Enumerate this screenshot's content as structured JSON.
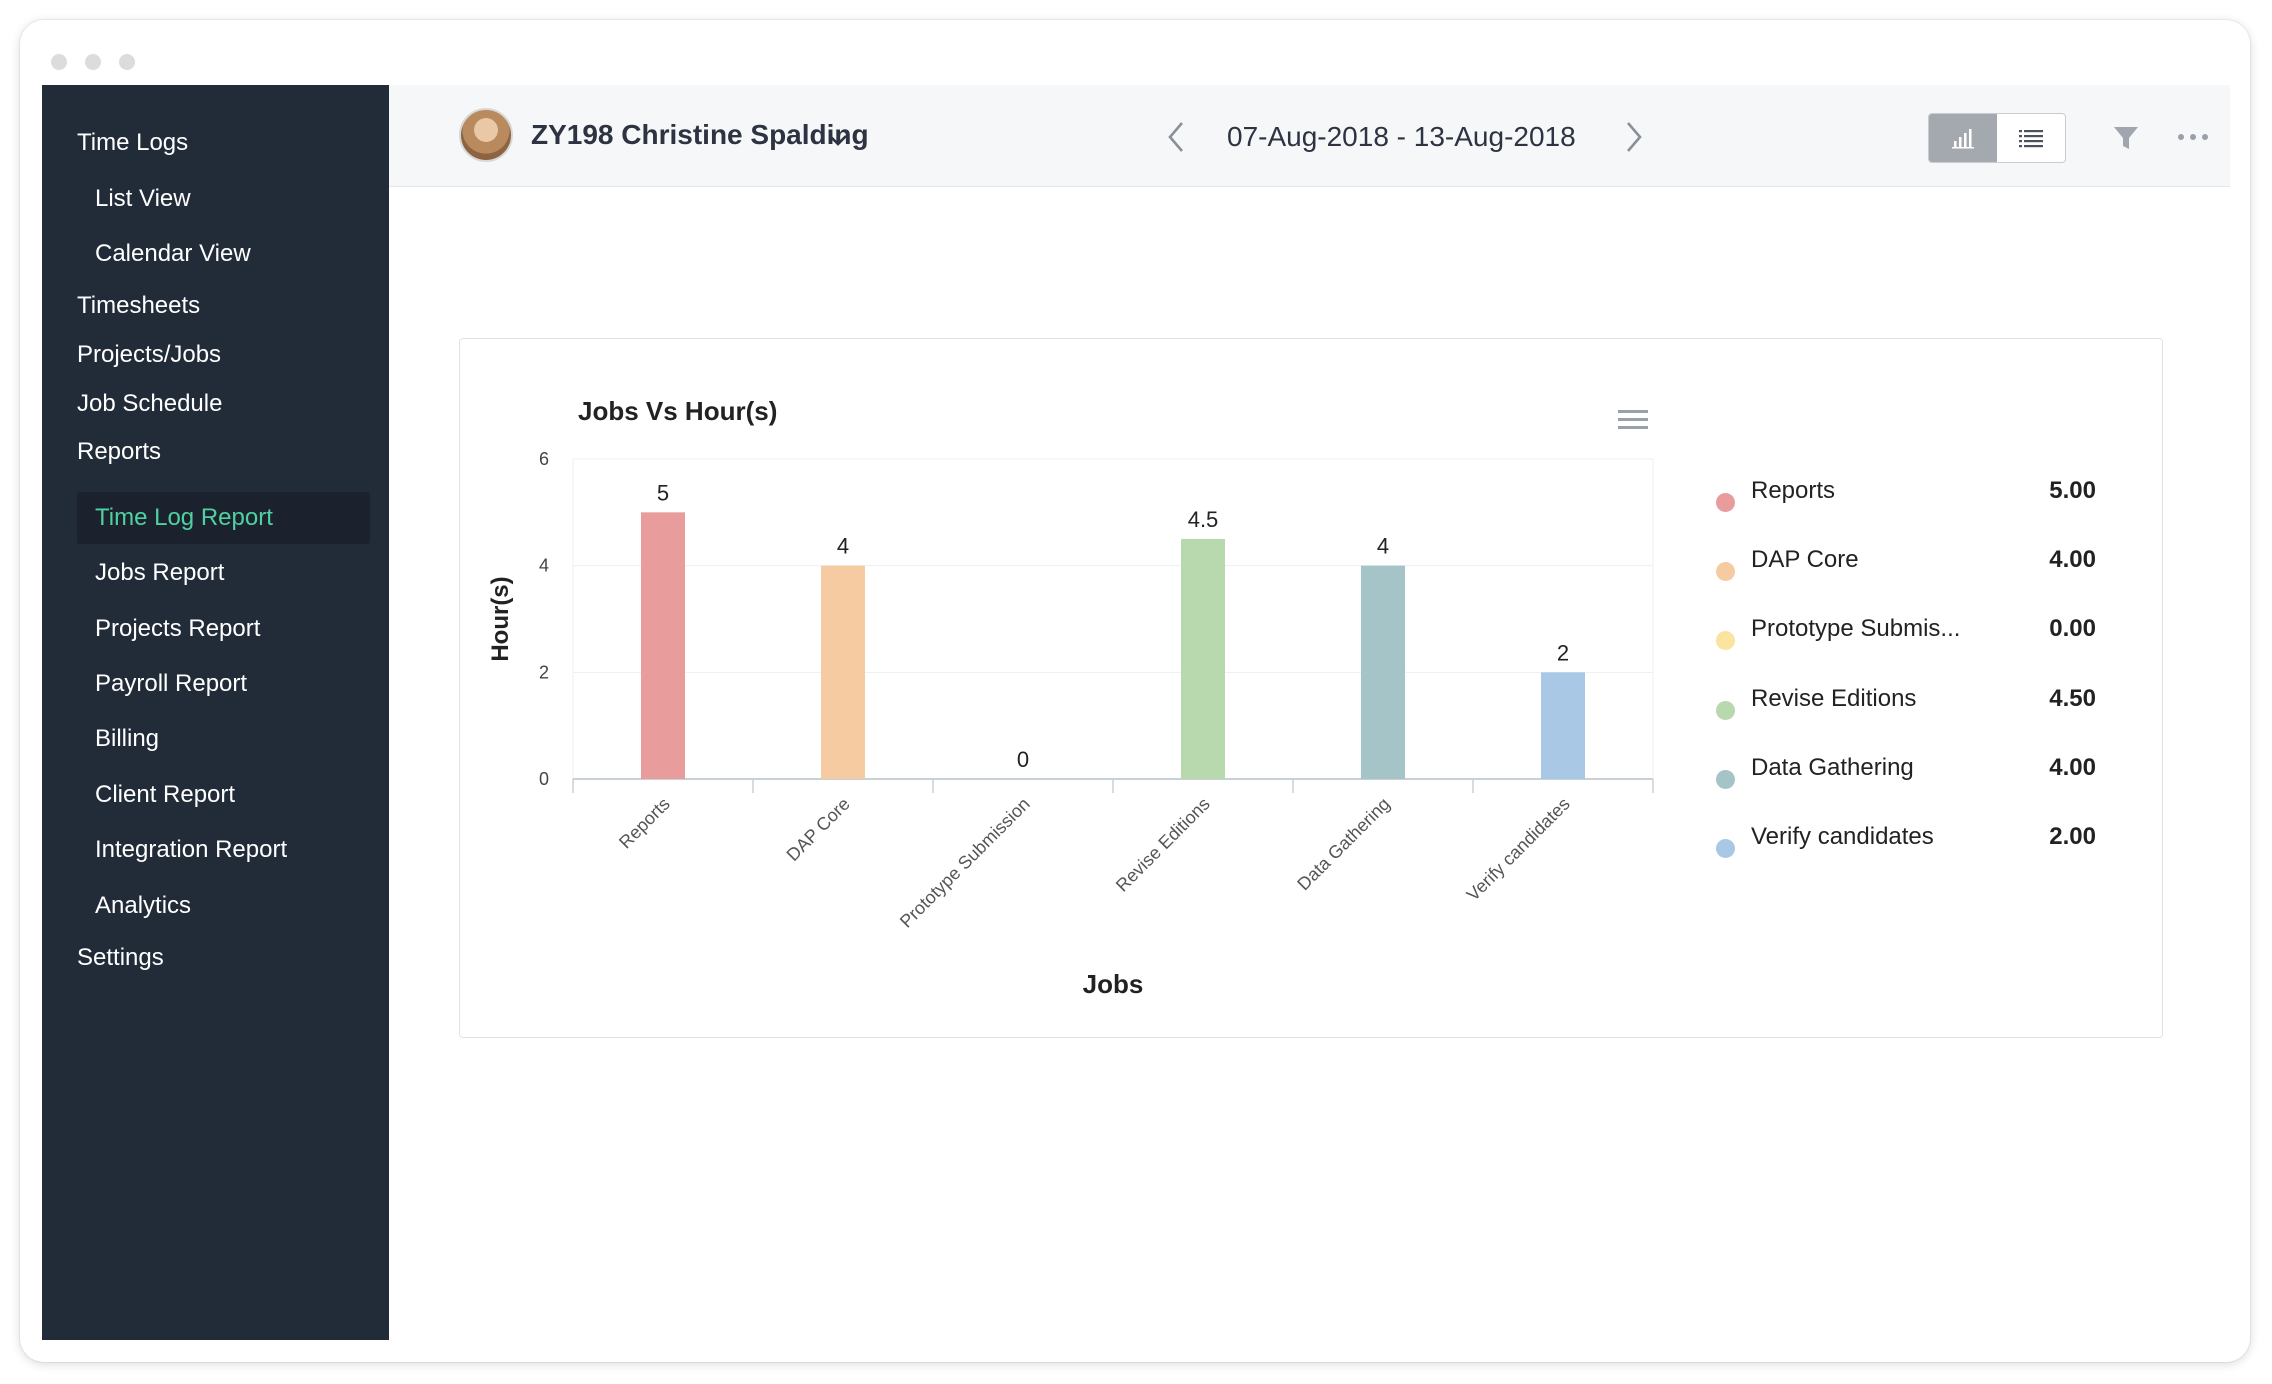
{
  "sidebar": {
    "items": [
      {
        "label": "Time Logs"
      },
      {
        "label": "List View"
      },
      {
        "label": "Calendar View"
      },
      {
        "label": "Timesheets"
      },
      {
        "label": "Projects/Jobs"
      },
      {
        "label": "Job Schedule"
      },
      {
        "label": "Reports"
      },
      {
        "label": "Time Log Report"
      },
      {
        "label": "Jobs Report"
      },
      {
        "label": "Projects Report"
      },
      {
        "label": "Payroll Report"
      },
      {
        "label": "Billing"
      },
      {
        "label": "Client Report"
      },
      {
        "label": "Integration Report"
      },
      {
        "label": "Analytics"
      },
      {
        "label": "Settings"
      }
    ],
    "active_item": "Time Log Report"
  },
  "header": {
    "user": "ZY198 Christine Spalding",
    "date_range": "07-Aug-2018 - 13-Aug-2018"
  },
  "colors": {
    "sidebar_bg": "#222b38",
    "active_text": "#4fd1a1",
    "series": [
      "#e89c9c",
      "#f7cba2",
      "#fbe3a0",
      "#b8d8ae",
      "#a5c4c8",
      "#a8c8e6"
    ]
  },
  "legend": [
    {
      "label": "Reports",
      "value": "5.00"
    },
    {
      "label": "DAP Core",
      "value": "4.00"
    },
    {
      "label": "Prototype Submis...",
      "value": "0.00"
    },
    {
      "label": "Revise Editions",
      "value": "4.50"
    },
    {
      "label": "Data Gathering",
      "value": "4.00"
    },
    {
      "label": "Verify candidates",
      "value": "2.00"
    }
  ],
  "chart_data": {
    "type": "bar",
    "title": "Jobs Vs Hour(s)",
    "xlabel": "Jobs",
    "ylabel": "Hour(s)",
    "categories": [
      "Reports",
      "DAP Core",
      "Prototype Submission",
      "Revise Editions",
      "Data Gathering",
      "Verify candidates"
    ],
    "values": [
      5,
      4,
      0,
      4.5,
      4,
      2
    ],
    "data_labels": [
      "5",
      "4",
      "0",
      "4.5",
      "4",
      "2"
    ],
    "ylim": [
      0,
      6
    ],
    "yticks": [
      0,
      2,
      4,
      6
    ],
    "grid": true,
    "legend": "right"
  }
}
